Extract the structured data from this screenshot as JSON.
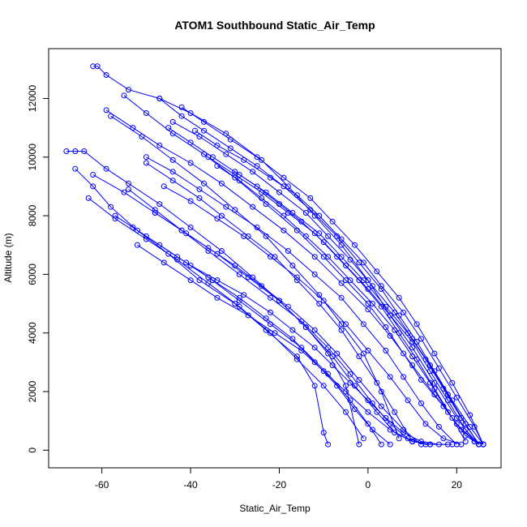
{
  "chart_data": {
    "type": "scatter",
    "title": "ATOM1 Southbound Static_Air_Temp",
    "xlabel": "Static_Air_Temp",
    "ylabel": "Altitude (m)",
    "xlim": [
      -72,
      30
    ],
    "ylim": [
      -600,
      13700
    ],
    "x_ticks": [
      -60,
      -40,
      -20,
      0,
      20
    ],
    "y_ticks": [
      0,
      2000,
      4000,
      6000,
      8000,
      10000,
      12000
    ],
    "x_tick_labels": [
      "-60",
      "-40",
      "-20",
      "0",
      "20"
    ],
    "y_tick_labels": [
      "0",
      "2000",
      "4000",
      "6000",
      "8000",
      "10000",
      "12000"
    ],
    "series_color": "#0000ff",
    "mode": "lines+markers",
    "series": [
      {
        "x": [
          -62,
          -61,
          -59,
          -54,
          -47,
          -40,
          -32,
          -24,
          -18,
          -12,
          -6,
          0,
          5,
          10,
          15,
          20,
          24,
          26
        ],
        "y": [
          13100,
          13100,
          12800,
          12300,
          12000,
          11500,
          10800,
          9900,
          9000,
          8000,
          7000,
          5800,
          4600,
          3500,
          2300,
          1100,
          300,
          200
        ]
      },
      {
        "x": [
          -68,
          -66,
          -64,
          -59,
          -54,
          -47,
          -40,
          -33,
          -26,
          -20,
          -14,
          -9,
          -5,
          -2
        ],
        "y": [
          10200,
          10200,
          10200,
          9600,
          9100,
          8400,
          7600,
          6800,
          5900,
          5100,
          4200,
          3300,
          2200,
          200
        ]
      },
      {
        "x": [
          -66,
          -62,
          -58,
          -52,
          -45,
          -38,
          -30,
          -23,
          -16,
          -12,
          -10,
          -9
        ],
        "y": [
          9600,
          9000,
          8300,
          7500,
          6700,
          5800,
          5000,
          4100,
          3200,
          2200,
          600,
          200
        ]
      },
      {
        "x": [
          -59,
          -53,
          -47,
          -40,
          -33,
          -26,
          -19,
          -12,
          -6,
          0,
          5,
          10,
          15,
          20,
          24,
          26
        ],
        "y": [
          11600,
          11000,
          10400,
          9800,
          9100,
          8300,
          7500,
          6600,
          5700,
          4800,
          3900,
          2900,
          1900,
          900,
          300,
          200
        ]
      },
      {
        "x": [
          -55,
          -50,
          -44,
          -37,
          -30,
          -23,
          -16,
          -10,
          -5,
          0,
          4,
          8,
          12,
          17,
          21,
          25
        ],
        "y": [
          12100,
          11500,
          10800,
          10100,
          9300,
          8400,
          7500,
          6600,
          5800,
          5000,
          4200,
          3300,
          2400,
          1500,
          700,
          200
        ]
      },
      {
        "x": [
          -62,
          -55,
          -48,
          -41,
          -34,
          -27,
          -20,
          -14,
          -8,
          -3,
          2,
          6,
          10,
          14
        ],
        "y": [
          9400,
          8800,
          8100,
          7400,
          6700,
          5900,
          5100,
          4200,
          3200,
          2200,
          1300,
          600,
          300,
          200
        ]
      },
      {
        "x": [
          -54,
          -48,
          -42,
          -36,
          -29,
          -22,
          -15,
          -9,
          -4,
          1,
          5,
          9,
          13,
          18
        ],
        "y": [
          8900,
          8200,
          7500,
          6800,
          6000,
          5200,
          4400,
          3500,
          2600,
          1600,
          900,
          400,
          200,
          200
        ]
      },
      {
        "x": [
          -47,
          -42,
          -37,
          -31,
          -25,
          -19,
          -13,
          -7,
          -2,
          3,
          7,
          11,
          15,
          19,
          23,
          26
        ],
        "y": [
          12000,
          11400,
          10900,
          10300,
          9700,
          9000,
          8200,
          7300,
          6400,
          5500,
          4600,
          3700,
          2700,
          1700,
          800,
          200
        ]
      },
      {
        "x": [
          -44,
          -38,
          -32,
          -26,
          -20,
          -14,
          -9,
          -4,
          1,
          6,
          10,
          14,
          18,
          22,
          25
        ],
        "y": [
          11200,
          10700,
          10100,
          9500,
          8800,
          8100,
          7300,
          6500,
          5600,
          4700,
          3800,
          2900,
          1900,
          900,
          200
        ]
      },
      {
        "x": [
          -50,
          -44,
          -38,
          -32,
          -25,
          -18,
          -12,
          -6,
          -1,
          4,
          8,
          12,
          16,
          20
        ],
        "y": [
          10000,
          9500,
          8900,
          8300,
          7600,
          6800,
          6000,
          5200,
          4300,
          3400,
          2500,
          1600,
          800,
          200
        ]
      },
      {
        "x": [
          -45,
          -40,
          -35,
          -29,
          -23,
          -17,
          -11,
          -6,
          -1,
          4,
          9,
          13,
          17,
          21,
          25
        ],
        "y": [
          11000,
          10500,
          10000,
          9400,
          8800,
          8100,
          7400,
          6600,
          5800,
          4900,
          4000,
          3100,
          2100,
          1100,
          200
        ]
      },
      {
        "x": [
          -58,
          -51,
          -44,
          -37,
          -30,
          -23,
          -17,
          -11,
          -6,
          -1,
          3,
          7
        ],
        "y": [
          11400,
          10700,
          9900,
          9100,
          8200,
          7300,
          6300,
          5300,
          4300,
          3300,
          2000,
          400
        ]
      },
      {
        "x": [
          -63,
          -57,
          -50,
          -43,
          -36,
          -29,
          -22,
          -16,
          -10,
          -5,
          -1
        ],
        "y": [
          8600,
          7900,
          7200,
          6500,
          5700,
          4900,
          4000,
          3100,
          2200,
          1300,
          400
        ]
      },
      {
        "x": [
          -42,
          -37,
          -31,
          -25,
          -19,
          -13,
          -8,
          -3,
          2,
          7,
          11,
          15,
          19,
          23,
          26
        ],
        "y": [
          11700,
          11200,
          10600,
          10000,
          9300,
          8600,
          7800,
          7000,
          6100,
          5200,
          4300,
          3300,
          2300,
          1200,
          200
        ]
      },
      {
        "x": [
          -36,
          -30,
          -24,
          -18,
          -12,
          -7,
          -2,
          3,
          7,
          11,
          15,
          19,
          22
        ],
        "y": [
          10000,
          9400,
          8800,
          8100,
          7400,
          6600,
          5800,
          4900,
          4000,
          3100,
          2100,
          1100,
          300
        ]
      },
      {
        "x": [
          -52,
          -46,
          -40,
          -34,
          -27,
          -21,
          -15,
          -10,
          -5,
          0,
          5,
          10,
          14
        ],
        "y": [
          7000,
          6400,
          5800,
          5200,
          4600,
          4000,
          3400,
          2700,
          2000,
          1300,
          700,
          300,
          200
        ]
      },
      {
        "x": [
          -48,
          -42,
          -36,
          -30,
          -24,
          -18,
          -12,
          -7,
          -2,
          3,
          8,
          12
        ],
        "y": [
          8100,
          7500,
          6900,
          6300,
          5600,
          4900,
          4100,
          3300,
          2400,
          1500,
          700,
          200
        ]
      },
      {
        "x": [
          -39,
          -34,
          -28,
          -22,
          -16,
          -11,
          -6,
          -1,
          3,
          8,
          12,
          16,
          20,
          24,
          26
        ],
        "y": [
          10900,
          10400,
          9900,
          9300,
          8700,
          8000,
          7200,
          6400,
          5600,
          4700,
          3800,
          2800,
          1800,
          800,
          200
        ]
      },
      {
        "x": [
          -30,
          -25,
          -20,
          -15,
          -10,
          -5,
          0,
          5,
          10,
          14,
          18,
          22,
          25
        ],
        "y": [
          9500,
          9000,
          8400,
          7800,
          7100,
          6300,
          5500,
          4600,
          3700,
          2700,
          1700,
          700,
          200
        ]
      },
      {
        "x": [
          -57,
          -50,
          -43,
          -36,
          -29,
          -22,
          -15,
          -9,
          -4,
          0,
          3
        ],
        "y": [
          8000,
          7300,
          6600,
          5900,
          5100,
          4300,
          3500,
          2600,
          1700,
          900,
          200
        ]
      },
      {
        "x": [
          -40,
          -34,
          -28,
          -22,
          -17,
          -12,
          -8,
          -4,
          0,
          4,
          8,
          12,
          16,
          19
        ],
        "y": [
          6300,
          5800,
          5300,
          4700,
          4100,
          3500,
          2900,
          2300,
          1700,
          1100,
          600,
          300,
          200,
          200
        ]
      },
      {
        "x": [
          -46,
          -40,
          -34,
          -28,
          -22,
          -16,
          -10,
          -5,
          0,
          5,
          9,
          13,
          17,
          21
        ],
        "y": [
          9000,
          8500,
          7900,
          7300,
          6600,
          5900,
          5100,
          4300,
          3400,
          2500,
          1700,
          900,
          400,
          200
        ]
      },
      {
        "x": [
          -34,
          -29,
          -24,
          -19,
          -14,
          -9,
          -4,
          1,
          6,
          10,
          14,
          18,
          22,
          25
        ],
        "y": [
          9700,
          9200,
          8600,
          8000,
          7300,
          6600,
          5800,
          5000,
          4100,
          3200,
          2300,
          1300,
          500,
          200
        ]
      },
      {
        "x": [
          -50,
          -44,
          -38,
          -33,
          -27,
          -21,
          -16,
          -11,
          -6,
          -2,
          2,
          6,
          10
        ],
        "y": [
          9800,
          9200,
          8600,
          8000,
          7300,
          6600,
          5800,
          5000,
          4100,
          3200,
          2300,
          1300,
          300
        ]
      },
      {
        "x": [
          -53,
          -47,
          -41,
          -35,
          -29,
          -23,
          -17,
          -12,
          -7,
          -3,
          1,
          5
        ],
        "y": [
          7600,
          7000,
          6400,
          5800,
          5200,
          4500,
          3800,
          3000,
          2200,
          1400,
          700,
          200
        ]
      }
    ]
  }
}
